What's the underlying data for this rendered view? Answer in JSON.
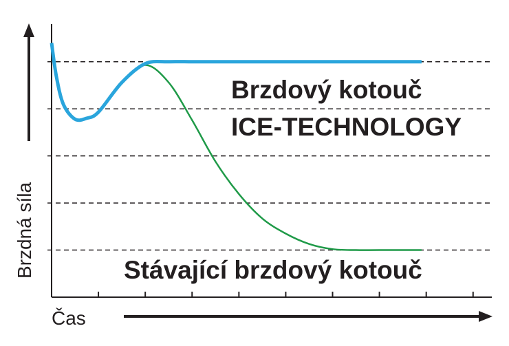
{
  "chart_data": {
    "type": "line",
    "x": [
      0,
      0.1,
      0.25,
      0.5,
      0.75,
      1,
      1.5,
      2,
      2.5,
      3,
      3.5,
      4,
      4.5,
      5,
      5.5,
      6,
      6.5,
      7,
      7.9
    ],
    "series": [
      {
        "color": "#1f9a48",
        "values": [
          5.4,
          4.7,
          4.1,
          3.78,
          3.8,
          3.93,
          4.56,
          4.93,
          4.56,
          3.76,
          2.88,
          2.19,
          1.67,
          1.35,
          1.13,
          1.02,
          1,
          1,
          1
        ]
      },
      {
        "color": "#2aa5dc",
        "values": [
          5.4,
          4.7,
          4.1,
          3.78,
          3.8,
          3.93,
          4.56,
          4.96,
          5,
          5,
          5,
          5,
          5,
          5,
          5,
          5,
          5,
          5,
          5
        ]
      }
    ],
    "xlim": [
      0,
      9.4
    ],
    "ylim": [
      0,
      5.8
    ],
    "xticks": [
      1,
      2,
      3,
      4,
      5,
      6,
      7,
      8,
      9
    ],
    "yticks": [
      1,
      2,
      3,
      4,
      5
    ],
    "grid": true,
    "ylabel": "Brzdná síla",
    "xlabel": "Čas",
    "annotations": [
      "Brzdový kotouč",
      "ICE-TECHNOLOGY",
      "Stávající brzdový kotouč"
    ]
  }
}
